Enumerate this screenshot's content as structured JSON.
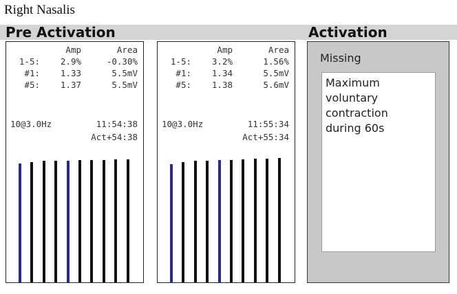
{
  "title": "Right Nasalis",
  "sections": {
    "pre_label": "Pre Activation",
    "act_label": "Activation"
  },
  "panels": [
    {
      "header": {
        "amp": "Amp",
        "area": "Area"
      },
      "rows": [
        {
          "label": "1-5:",
          "amp": "2.9%",
          "area": "-0.30%"
        },
        {
          "label": "#1:",
          "amp": "1.33",
          "area": "5.5mV"
        },
        {
          "label": "#5:",
          "amp": "1.37",
          "area": "5.5mV"
        }
      ],
      "freq": "10@3.0Hz",
      "time": "11:54:38",
      "act": "Act+54:38",
      "bars": [
        {
          "level": 0.915,
          "color": "blue"
        },
        {
          "level": 0.925,
          "color": "black"
        },
        {
          "level": 0.935,
          "color": "black"
        },
        {
          "level": 0.935,
          "color": "black"
        },
        {
          "level": 0.935,
          "color": "blue"
        },
        {
          "level": 0.94,
          "color": "black"
        },
        {
          "level": 0.94,
          "color": "black"
        },
        {
          "level": 0.94,
          "color": "black"
        },
        {
          "level": 0.945,
          "color": "black"
        },
        {
          "level": 0.945,
          "color": "black"
        }
      ]
    },
    {
      "header": {
        "amp": "Amp",
        "area": "Area"
      },
      "rows": [
        {
          "label": "1-5:",
          "amp": "3.2%",
          "area": "1.56%"
        },
        {
          "label": "#1:",
          "amp": "1.34",
          "area": "5.5mV"
        },
        {
          "label": "#5:",
          "amp": "1.38",
          "area": "5.6mV"
        }
      ],
      "freq": "10@3.0Hz",
      "time": "11:55:34",
      "act": "Act+55:34",
      "bars": [
        {
          "level": 0.91,
          "color": "blue"
        },
        {
          "level": 0.925,
          "color": "black"
        },
        {
          "level": 0.935,
          "color": "black"
        },
        {
          "level": 0.935,
          "color": "black"
        },
        {
          "level": 0.94,
          "color": "blue"
        },
        {
          "level": 0.94,
          "color": "black"
        },
        {
          "level": 0.945,
          "color": "black"
        },
        {
          "level": 0.95,
          "color": "black"
        },
        {
          "level": 0.955,
          "color": "black"
        },
        {
          "level": 0.96,
          "color": "black"
        }
      ]
    }
  ],
  "activation": {
    "missing": "Missing",
    "lines": [
      "Maximum",
      "voluntary",
      "contraction",
      "during 60s"
    ]
  },
  "colors": {
    "bar_black": "#111111",
    "bar_blue": "#2a2a8c",
    "header_bar": "#d4d4d4",
    "activation_bg": "#c8c8c8"
  }
}
